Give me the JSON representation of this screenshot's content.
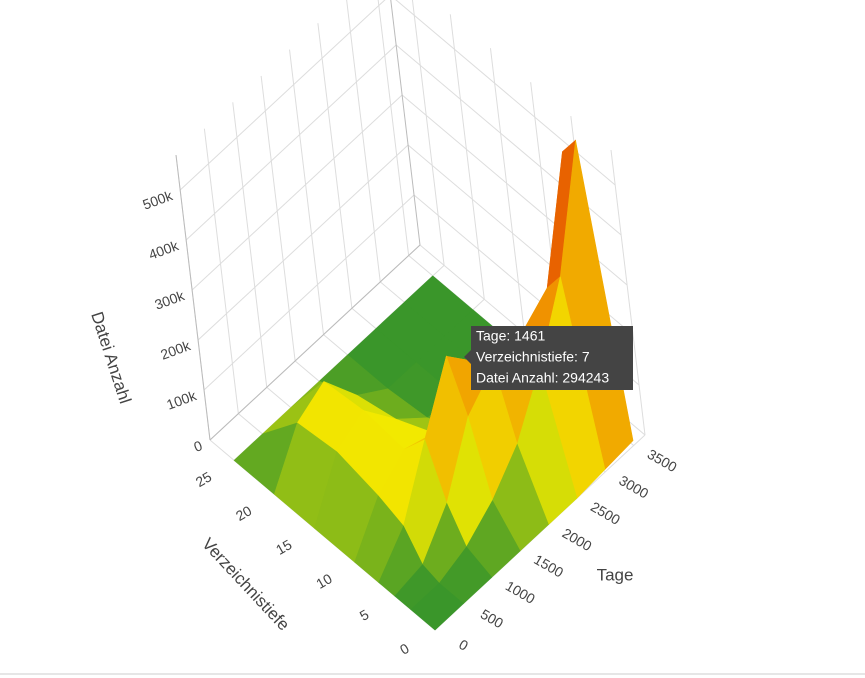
{
  "chart_data": {
    "type": "surface",
    "x_label": "Tage",
    "y_label": "Verzeichnistiefe",
    "z_label": "Datei Anzahl",
    "x": [
      0,
      500,
      1000,
      1500,
      2000,
      2500,
      3000,
      3500
    ],
    "y": [
      0,
      3,
      5,
      7,
      10,
      15,
      20,
      25
    ],
    "z": [
      [
        0,
        0,
        0,
        0,
        0,
        0,
        5000,
        10000
      ],
      [
        0,
        0,
        20000,
        60000,
        120000,
        220000,
        350000,
        570000
      ],
      [
        0,
        10000,
        80000,
        200000,
        250000,
        260000,
        300000,
        520000
      ],
      [
        0,
        60000,
        180000,
        294243,
        230000,
        150000,
        150000,
        200000
      ],
      [
        0,
        80000,
        120000,
        100000,
        50000,
        20000,
        10000,
        10000
      ],
      [
        0,
        100000,
        130000,
        60000,
        10000,
        0,
        0,
        0
      ],
      [
        0,
        90000,
        120000,
        40000,
        0,
        0,
        0,
        0
      ],
      [
        0,
        0,
        0,
        0,
        0,
        0,
        0,
        0
      ]
    ],
    "xlim": [
      0,
      3700
    ],
    "ylim": [
      0,
      28
    ],
    "zlim": [
      0,
      570000
    ],
    "xticks": [
      0,
      500,
      1000,
      1500,
      2000,
      2500,
      3000,
      3500
    ],
    "yticks": [
      0,
      5,
      10,
      15,
      20,
      25
    ],
    "zticks": [
      0,
      {
        "value": 100000,
        "label": "100k"
      },
      {
        "value": 200000,
        "label": "200k"
      },
      {
        "value": 300000,
        "label": "300k"
      },
      {
        "value": 400000,
        "label": "400k"
      },
      {
        "value": 500000,
        "label": "500k"
      }
    ],
    "colorscale": [
      [
        0,
        "#3a962a"
      ],
      [
        100000,
        "#f2ea00"
      ],
      [
        300000,
        "#f08a00"
      ],
      [
        570000,
        "#e03a00"
      ]
    ],
    "grid": true,
    "hover": {
      "lines": [
        "Tage: 1461",
        "Verzeichnistiefe: 7",
        "Datei Anzahl: 294243"
      ]
    }
  }
}
